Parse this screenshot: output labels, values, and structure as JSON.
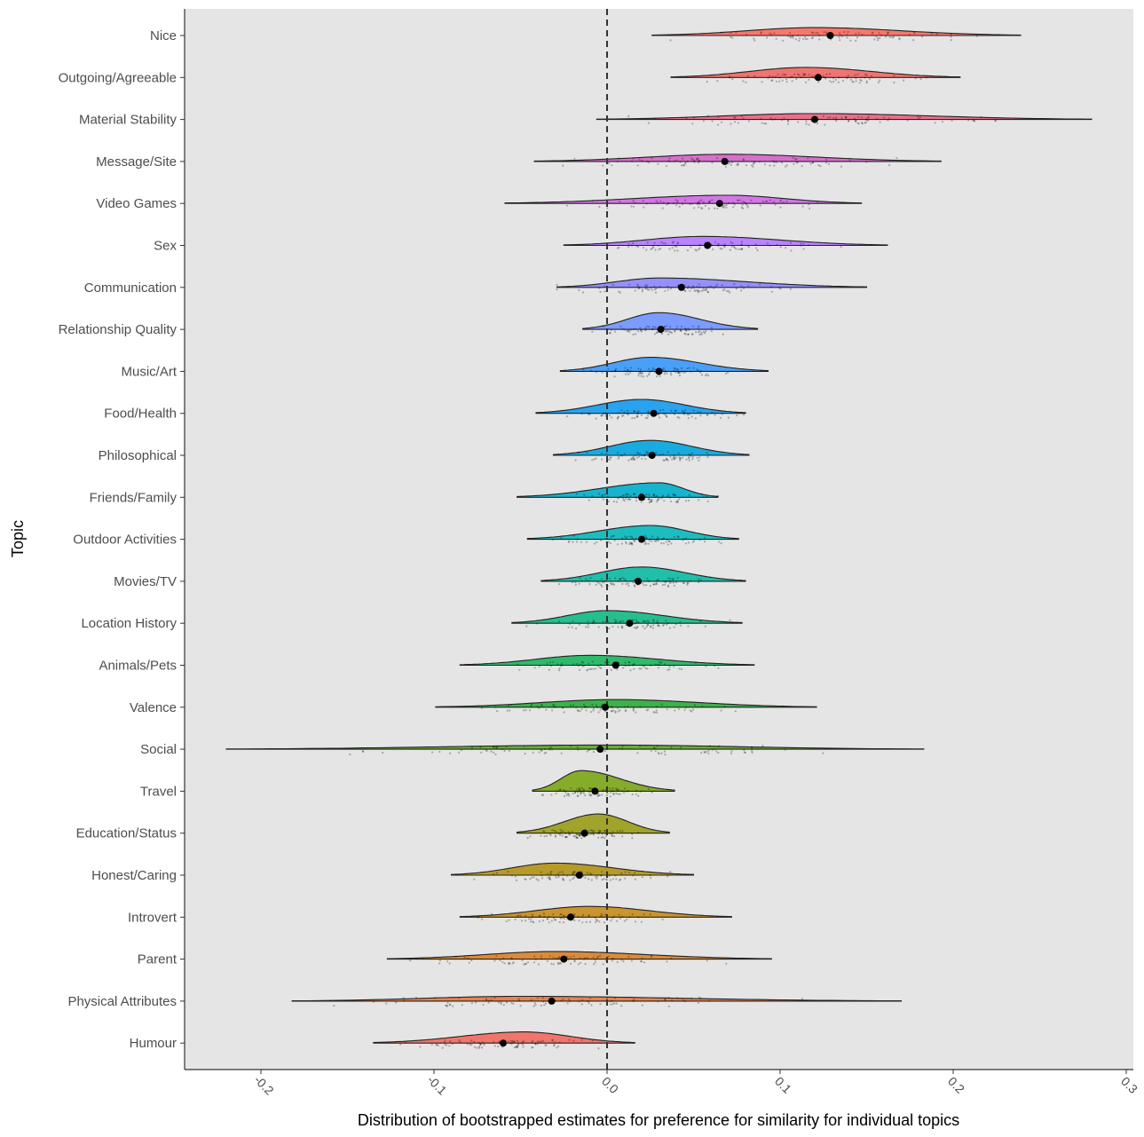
{
  "chart_data": {
    "type": "raincloud",
    "xlabel": "Distribution of bootstrapped estimates for preference for similarity for individual topics",
    "ylabel": "Topic",
    "xlim": [
      -0.245,
      0.305
    ],
    "x_ticks": [
      -0.2,
      -0.1,
      0.0,
      0.1,
      0.2,
      0.3
    ],
    "x_tick_labels": [
      "-0.2",
      "-0.1",
      "0.0",
      "0.1",
      "0.2",
      "0.3"
    ],
    "reference_line_x": 0.0,
    "grid": false,
    "legend": "none",
    "topics": [
      {
        "name": "Nice",
        "mean": 0.129,
        "min": 0.026,
        "max": 0.239,
        "peak": 0.12,
        "color": "#F8766D"
      },
      {
        "name": "Outgoing/Agreeable",
        "mean": 0.122,
        "min": 0.037,
        "max": 0.204,
        "peak": 0.115,
        "color": "#F0746F"
      },
      {
        "name": "Material Stability",
        "mean": 0.12,
        "min": -0.006,
        "max": 0.28,
        "peak": 0.12,
        "color": "#EB6F8B"
      },
      {
        "name": "Message/Site",
        "mean": 0.068,
        "min": -0.042,
        "max": 0.193,
        "peak": 0.07,
        "color": "#D86FCE"
      },
      {
        "name": "Video Games",
        "mean": 0.065,
        "min": -0.059,
        "max": 0.147,
        "peak": 0.07,
        "color": "#D575E8"
      },
      {
        "name": "Sex",
        "mean": 0.058,
        "min": -0.025,
        "max": 0.162,
        "peak": 0.055,
        "color": "#B983FF"
      },
      {
        "name": "Communication",
        "mean": 0.043,
        "min": -0.029,
        "max": 0.15,
        "peak": 0.03,
        "color": "#9590FF"
      },
      {
        "name": "Relationship Quality",
        "mean": 0.031,
        "min": -0.014,
        "max": 0.087,
        "peak": 0.03,
        "color": "#7C9BFF"
      },
      {
        "name": "Music/Art",
        "mean": 0.03,
        "min": -0.027,
        "max": 0.093,
        "peak": 0.025,
        "color": "#4AA0F8"
      },
      {
        "name": "Food/Health",
        "mean": 0.027,
        "min": -0.041,
        "max": 0.08,
        "peak": 0.02,
        "color": "#27A3F0"
      },
      {
        "name": "Philosophical",
        "mean": 0.026,
        "min": -0.031,
        "max": 0.082,
        "peak": 0.025,
        "color": "#19ABE0"
      },
      {
        "name": "Friends/Family",
        "mean": 0.02,
        "min": -0.052,
        "max": 0.064,
        "peak": 0.03,
        "color": "#17B4D0"
      },
      {
        "name": "Outdoor Activities",
        "mean": 0.02,
        "min": -0.046,
        "max": 0.076,
        "peak": 0.025,
        "color": "#1CBDC0"
      },
      {
        "name": "Movies/TV",
        "mean": 0.018,
        "min": -0.038,
        "max": 0.08,
        "peak": 0.02,
        "color": "#20BFAA"
      },
      {
        "name": "Location History",
        "mean": 0.013,
        "min": -0.055,
        "max": 0.078,
        "peak": 0.0,
        "color": "#26BE8E"
      },
      {
        "name": "Animals/Pets",
        "mean": 0.005,
        "min": -0.085,
        "max": 0.085,
        "peak": -0.01,
        "color": "#2EBA6A"
      },
      {
        "name": "Valence",
        "mean": -0.001,
        "min": -0.099,
        "max": 0.121,
        "peak": 0.005,
        "color": "#3BB34A"
      },
      {
        "name": "Social",
        "mean": -0.004,
        "min": -0.22,
        "max": 0.183,
        "peak": 0.0,
        "color": "#67AE35"
      },
      {
        "name": "Travel",
        "mean": -0.007,
        "min": -0.043,
        "max": 0.039,
        "peak": -0.015,
        "color": "#86AC2C"
      },
      {
        "name": "Education/Status",
        "mean": -0.013,
        "min": -0.052,
        "max": 0.036,
        "peak": -0.005,
        "color": "#A1A42A"
      },
      {
        "name": "Honest/Caring",
        "mean": -0.016,
        "min": -0.09,
        "max": 0.05,
        "peak": -0.03,
        "color": "#B89A2A"
      },
      {
        "name": "Introvert",
        "mean": -0.021,
        "min": -0.085,
        "max": 0.072,
        "peak": -0.01,
        "color": "#CB942D"
      },
      {
        "name": "Parent",
        "mean": -0.025,
        "min": -0.127,
        "max": 0.095,
        "peak": -0.03,
        "color": "#DB8B39"
      },
      {
        "name": "Physical Attributes",
        "mean": -0.032,
        "min": -0.182,
        "max": 0.17,
        "peak": -0.05,
        "color": "#E8834E"
      },
      {
        "name": "Humour",
        "mean": -0.06,
        "min": -0.135,
        "max": 0.016,
        "peak": -0.048,
        "color": "#F0766C"
      }
    ]
  }
}
